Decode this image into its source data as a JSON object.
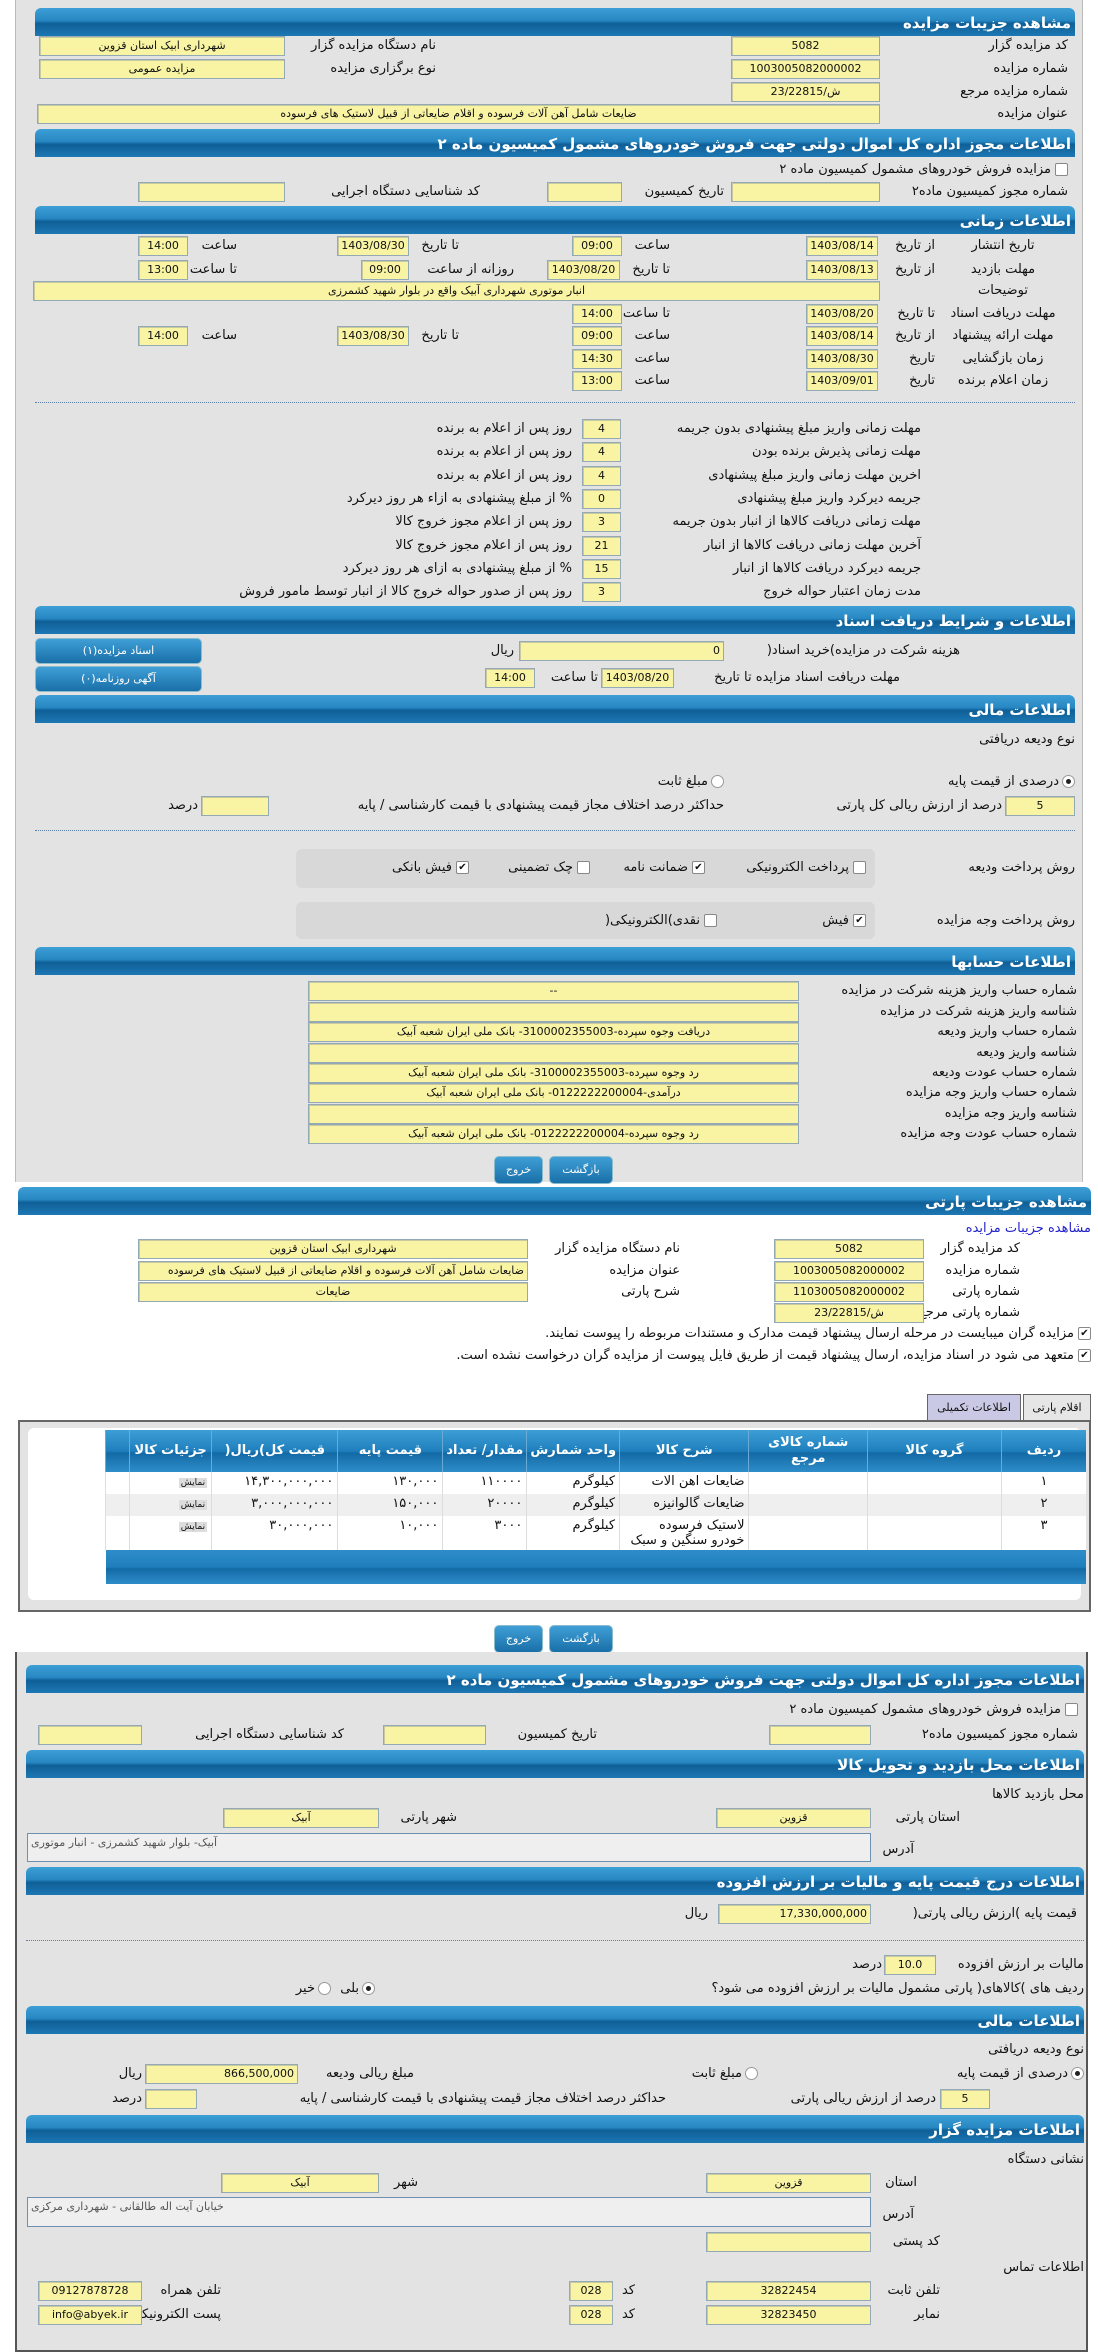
{
  "auction": {
    "title": "مشاهده جزیبات مزایده",
    "code_label": "کد مزایده گزار",
    "code": "5082",
    "org_label": "نام دستگاه مزایده گزار",
    "org": "شهرداری ابیک استان قزوین",
    "number_label": "شماره مزایده",
    "number": "1003005082000002",
    "type_label": "نوع برگزاری مزایده",
    "type": "مزایده عمومی",
    "ref_label": "شماره مزایده مرجع",
    "ref": "ش/23/22815",
    "subject_label": "عنوان مزایده",
    "subject": "ضایعات شامل آهن آلات فرسوده و اقلام ضایعاتی از قبیل لاستیک های فرسوده"
  },
  "permit": {
    "title": "اطلاعات مجوز اداره کل اموال دولتی جهت فروش خودروهای مشمول کمیسیون ماده ۲",
    "checkbox_label": "مزایده فروش خودروهای مشمول کمیسیون ماده ۲",
    "checked": false,
    "permit_no_label": "شماره مجوز کمیسیون ماده۲",
    "permit_no": "",
    "date_label": "تاریخ کمیسیون",
    "date": "",
    "exec_code_label": "کد شناسایی دستگاه اجرایی",
    "exec_code": ""
  },
  "timing": {
    "title": "اطلاعات زمانی",
    "from_date": "از تاریخ",
    "to_date": "تا تاریخ",
    "date": "تاریخ",
    "time": "ساعت",
    "to_time": "تا ساعت",
    "daily_from_time": "روزانه از ساعت",
    "publish_label": "تاریخ انتشار",
    "publish_from": "1403/08/14",
    "publish_from_time": "09:00",
    "publish_to": "1403/08/30",
    "publish_to_time": "14:00",
    "visit_label": "مهلت بازدید",
    "visit_from": "1403/08/13",
    "visit_to": "1403/08/20",
    "visit_daily_from": "09:00",
    "visit_to_time": "13:00",
    "desc_label": "توضیحات",
    "desc": "انبار موتوری شهرداری آبیک واقع در بلوار شهید کشمرزی",
    "docs_label": "مهلت دریافت اسناد",
    "docs_to": "1403/08/20",
    "docs_to_time": "14:00",
    "offer_label": "مهلت ارائه پیشنهاد",
    "offer_from": "1403/08/14",
    "offer_from_time": "09:00",
    "offer_to": "1403/08/30",
    "offer_to_time": "14:00",
    "opening_label": "زمان بازگشایی",
    "opening_date": "1403/08/30",
    "opening_time": "14:30",
    "winner_label": "زمان اعلام برنده",
    "winner_date": "1403/09/01",
    "winner_time": "13:00"
  },
  "rules": [
    {
      "label": "مهلت زمانی واریز مبلغ پیشنهادی بدون جریمه",
      "value": "4",
      "suffix": "روز پس از اعلام به برنده"
    },
    {
      "label": "مهلت زمانی پذیرش برنده بودن",
      "value": "4",
      "suffix": "روز پس از اعلام به برنده"
    },
    {
      "label": "اخرین مهلت زمانی واریز مبلغ پیشنهادی",
      "value": "4",
      "suffix": "روز پس از اعلام به برنده"
    },
    {
      "label": "جریمه دیرکرد واریز مبلغ پیشنهادی",
      "value": "0",
      "suffix": "% از مبلغ پیشنهادی به ازاء هر روز دیرکرد"
    },
    {
      "label": "مهلت زمانی دریافت کالاها از انبار بدون جریمه",
      "value": "3",
      "suffix": "روز پس از اعلام مجوز خروج کالا"
    },
    {
      "label": "آخرین مهلت زمانی دریافت کالاها از انبار",
      "value": "21",
      "suffix": "روز پس از اعلام مجوز خروج کالا"
    },
    {
      "label": "جریمه دیرکرد دریافت کالاها از انبار",
      "value": "15",
      "suffix": "% از مبلغ پیشنهادی به ازای هر روز دیرکرد"
    },
    {
      "label": "مدت زمان اعتبار حواله خروج",
      "value": "3",
      "suffix": "روز پس از صدور حواله خروج کالا از انبار توسط مامور فروش"
    }
  ],
  "docs": {
    "title": "اطلاعات و شرایط دریافت اسناد",
    "fee_label": "هزینه شرکت در مزایده)خرید اسناد(",
    "fee": "0",
    "currency": "ریال",
    "deadline_label": "مهلت دریافت اسناد مزایده تا تاریخ",
    "deadline_date": "1403/08/20",
    "to_time": "تا ساعت",
    "deadline_time": "14:00",
    "docs_button": "اسناد مزایده(۱)",
    "ads_button": "آگهی روزنامه(۰)"
  },
  "finance": {
    "title": "اطلاعات مالی",
    "deposit_type_label": "نوع ودیعه دریافتی",
    "percent_option": "درصدی از قیمت پایه",
    "fixed_option": "مبلغ ثابت",
    "selected": "percent",
    "percent": "5",
    "percent_suffix": "درصد از ارزش ریالی کل پارتی",
    "max_diff_label": "حداکثر درصد اختلاف مجاز قیمت پیشنهادی با قیمت کارشناسی / پایه",
    "max_diff": "",
    "percent_unit": "درصد",
    "deposit_method_label": "روش پرداخت ودیعه",
    "deposit_methods": [
      {
        "label": "پرداخت الکترونیکی",
        "checked": false
      },
      {
        "label": "ضمانت نامه",
        "checked": true
      },
      {
        "label": "چک تضمینی",
        "checked": false
      },
      {
        "label": "فیش بانکی",
        "checked": true
      }
    ],
    "payment_method_label": "روش پرداخت وجه مزایده",
    "payment_methods": [
      {
        "label": "فیش",
        "checked": true
      },
      {
        "label": "نقدی)الکترونیکی(",
        "checked": false
      }
    ]
  },
  "accounts": {
    "title": "اطلاعات حسابها",
    "rows": [
      {
        "label": "شماره حساب واریز هزینه شرکت در مزایده",
        "value": "--"
      },
      {
        "label": "شناسه واریز هزینه شرکت در مزایده",
        "value": ""
      },
      {
        "label": "شماره حساب واریز ودیعه",
        "value": "دریافت وجوه سپرده-3100002355003- بانک ملی ایران شعبه آبیک"
      },
      {
        "label": "شناسه واریز ودیعه",
        "value": ""
      },
      {
        "label": "شماره حساب عودت ودیعه",
        "value": "رد وجوه سپرده-3100002355003- بانک ملی ایران شعبه آبیک"
      },
      {
        "label": "شماره حساب واریز وجه مزایده",
        "value": "درآمدی-0122222200004- بانک ملی ایران شعبه آبیک"
      },
      {
        "label": "شناسه واریز وجه مزایده",
        "value": ""
      },
      {
        "label": "شماره حساب عودت وجه مزایده",
        "value": "رد وجوه سپرده-0122222200004- بانک ملی ایران شعبه آبیک"
      }
    ]
  },
  "buttons": {
    "back": "بازگشت",
    "exit": "خروج"
  },
  "party": {
    "title": "مشاهده جزیبات پارتی",
    "link": "مشاهده جزیبات مزایده",
    "code_label": "کد مزایده گزار",
    "code": "5082",
    "org_label": "نام دستگاه مزایده گزار",
    "org": "شهرداری ابیک استان قزوین",
    "number_label": "شماره مزایده",
    "number": "1003005082000002",
    "subject_label": "عنوان مزایده",
    "subject": "ضایعات شامل آهن آلات فرسوده و اقلام ضایعاتی از قبیل لاستیک های فرسوده",
    "party_no_label": "شماره پارتی",
    "party_no": "1103005082000002",
    "desc_label": "شرح پارتی",
    "desc": "ضایعات",
    "ref_label": "شماره پارتی مرجع",
    "ref": "ش/23/22815",
    "confirm1": "مزایده گران میبایست در مرحله ارسال پیشنهاد قیمت مدارک و مستندات مربوطه را پیوست نمایند.",
    "confirm2": "متعهد می شود در اسناد مزایده، ارسال پیشنهاد قیمت از طریق فایل پیوست از مزایده گران درخواست نشده است.",
    "tabs": [
      "اقلام پارتی",
      "اطلاعات تکمیلی"
    ]
  },
  "items": {
    "headers": [
      "ردیف",
      "گروه کالا",
      "شماره کالای مرجع",
      "شرح کالا",
      "واحد شمارش",
      "مقدار/ تعداد",
      "قیمت پایه",
      "قیمت کل)ریال(",
      "جزئیات کالا"
    ],
    "rows": [
      {
        "row": "۱",
        "group": "",
        "ref": "",
        "desc": "ضایعات اهن الات",
        "unit": "کیلوگرم",
        "qty": "۱۱۰۰۰۰",
        "base": "۱۳۰,۰۰۰",
        "total": "۱۴,۳۰۰,۰۰۰,۰۰۰",
        "detail": "نمایش"
      },
      {
        "row": "۲",
        "group": "",
        "ref": "",
        "desc": "ضایعات گالوانیزه",
        "unit": "کیلوگرم",
        "qty": "۲۰۰۰۰",
        "base": "۱۵۰,۰۰۰",
        "total": "۳,۰۰۰,۰۰۰,۰۰۰",
        "detail": "نمایش"
      },
      {
        "row": "۳",
        "group": "",
        "ref": "",
        "desc": "لاستیک فرسوده خودرو سنگین و سبک",
        "unit": "کیلوگرم",
        "qty": "۳۰۰۰",
        "base": "۱۰,۰۰۰",
        "total": "۳۰,۰۰۰,۰۰۰",
        "detail": "نمایش"
      }
    ]
  },
  "permit2": {
    "title": "اطلاعات مجوز اداره کل اموال دولتی جهت فروش خودروهای مشمول کمیسیون ماده ۲",
    "checkbox_label": "مزایده فروش خودروهای مشمول کمیسیون ماده ۲",
    "permit_no_label": "شماره مجوز کمیسیون ماده۲",
    "date_label": "تاریخ کمیسیون",
    "exec_code_label": "کد شناسایی دستگاه اجرایی"
  },
  "location": {
    "title": "اطلاعات محل بازدید و تحویل کالا",
    "visit_place_label": "محل بازدید کالاها",
    "province_label": "استان پارتی",
    "province": "قزوین",
    "city_label": "شهر پارتی",
    "city": "آبیک",
    "address_label": "آدرس",
    "address": "آبیک- بلوار شهید کشمرزی - انبار موتوری"
  },
  "pricing": {
    "title": "اطلاعات درج قیمت پایه و مالیات بر ارزش افزوده",
    "base_label": "قیمت پایه )ارزش ریالی پارتی(",
    "base": "17,330,000,000",
    "currency": "ریال",
    "vat_label": "مالیات بر ارزش افزوده",
    "vat": "10.0",
    "vat_unit": "درصد",
    "vat_question": "ردیف های )کالاهای( پارتی مشمول مالیات بر ارزش افزوده می شود؟",
    "yes": "بلی",
    "no": "خیر",
    "selected": "yes"
  },
  "finance2": {
    "title": "اطلاعات مالی",
    "deposit_type_label": "نوع ودیعه دریافتی",
    "percent_option": "درصدی از قیمت پایه",
    "fixed_option": "مبلغ ثابت",
    "deposit_amount_label": "مبلغ ریالی ودیعه",
    "deposit_amount": "866,500,000",
    "currency": "ریال",
    "percent": "5",
    "percent_suffix": "درصد از ارزش ریالی پارتی",
    "max_diff_label": "حداکثر درصد اختلاف مجاز قیمت پیشنهادی با قیمت کارشناسی / پایه",
    "max_diff": "",
    "percent_unit": "درصد"
  },
  "organizer": {
    "title": "اطلاعات مزایده گزار",
    "address_section": "نشانی دستگاه",
    "province_label": "استان",
    "province": "قزوین",
    "city_label": "شهر",
    "city": "آبیک",
    "address_label": "آدرس",
    "address": "خیابان آیت اله طالقانی - شهرداری مرکزی",
    "postal_label": "کد پستی",
    "postal": "",
    "contact_section": "اطلاعات تماس",
    "phone_label": "تلفن ثابت",
    "phone": "32822454",
    "code_label": "کد",
    "phone_code": "028",
    "mobile_label": "تلفن همراه",
    "mobile": "09127878728",
    "fax_label": "نمابر",
    "fax": "32823450",
    "fax_code": "028",
    "email_label": "پست الکترونیکی",
    "email": "info@abyek.ir"
  },
  "colors": {
    "header_blue": "#1f7fbd",
    "field_yellow": "#f8f4a3",
    "panel_gray": "#e3e3e3"
  }
}
